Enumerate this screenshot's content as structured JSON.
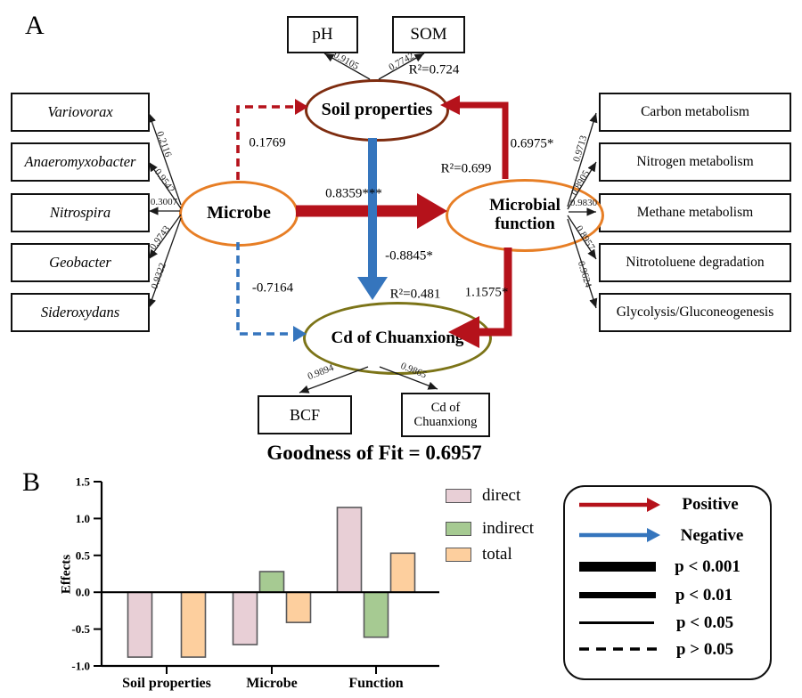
{
  "colors": {
    "positive_red": "#b5121b",
    "negative_blue": "#3575bd",
    "soil_ellipse_stroke": "#7e2c0f",
    "microbe_ellipse_stroke": "#e77e25",
    "cd_ellipse_stroke": "#7c7418",
    "bar_direct": "#e8cfd6",
    "bar_indirect": "#a6ca92",
    "bar_total": "#fdcf9e"
  },
  "panel_a": {
    "label": "A",
    "latent": {
      "soil": "Soil properties",
      "microbe": "Microbe",
      "function": "Microbial function",
      "cd": "Cd of Chuanxiong"
    },
    "top_indicators": [
      {
        "label": "pH",
        "coef": "0.9105"
      },
      {
        "label": "SOM",
        "coef": "0.7742"
      }
    ],
    "left_indicators": [
      {
        "label": "Variovorax",
        "coef": "0.2116"
      },
      {
        "label": "Anaeromyxobacter",
        "coef": "0.9542"
      },
      {
        "label": "Nitrospira",
        "coef": "0.3007"
      },
      {
        "label": "Geobacter",
        "coef": "0.9743"
      },
      {
        "label": "Sideroxydans",
        "coef": "0.9322"
      }
    ],
    "right_indicators": [
      {
        "label": "Carbon metabolism",
        "coef": "0.9713"
      },
      {
        "label": "Nitrogen metabolism",
        "coef": "0.8905"
      },
      {
        "label": "Methane metabolism",
        "coef": "0.9830"
      },
      {
        "label": "Nitrotoluene degradation",
        "coef": "0.8957"
      },
      {
        "label": "Glycolysis/Gluconeogenesis",
        "coef": "0.9624"
      }
    ],
    "bottom_indicators": [
      {
        "label": "BCF",
        "coef": "0.9894"
      },
      {
        "label": "Cd of Chuanxiong",
        "coef": "0.9865"
      }
    ],
    "path_coefficients": {
      "microbe_to_soil": "0.1769",
      "microbe_to_function": "0.8359***",
      "microbe_to_cd": "-0.7164",
      "soil_to_cd": "-0.8845*",
      "function_to_soil": "0.6975*",
      "function_to_cd": "1.1575*"
    },
    "r_squared": {
      "soil": "R²=0.724",
      "function": "R²=0.699",
      "cd": "R²=0.481"
    },
    "goodness_of_fit": "Goodness of Fit = 0.6957"
  },
  "panel_b": {
    "label": "B",
    "bar_legend": [
      {
        "label": "direct"
      },
      {
        "label": "indirect"
      },
      {
        "label": "total"
      }
    ]
  },
  "sig_legend": {
    "positive": "Positive",
    "negative": "Negative",
    "p_items": [
      "p < 0.001",
      "p < 0.01",
      "p < 0.05",
      "p > 0.05"
    ]
  },
  "chart_data": {
    "type": "bar",
    "categories": [
      "Soil properties",
      "Microbe",
      "Function"
    ],
    "series": [
      {
        "name": "direct",
        "color": "#e8cfd6",
        "values": [
          -0.88,
          -0.71,
          1.15
        ]
      },
      {
        "name": "indirect",
        "color": "#a6ca92",
        "values": [
          null,
          0.28,
          -0.61
        ]
      },
      {
        "name": "total",
        "color": "#fdcf9e",
        "values": [
          -0.88,
          -0.41,
          0.53
        ]
      }
    ],
    "title": "",
    "xlabel": "",
    "ylabel": "Effects",
    "ylim": [
      -1.0,
      1.5
    ],
    "yticks": [
      1.5,
      1.0,
      0.5,
      0.0,
      -0.5,
      -1.0
    ],
    "legend_position": "right",
    "grid": false
  }
}
